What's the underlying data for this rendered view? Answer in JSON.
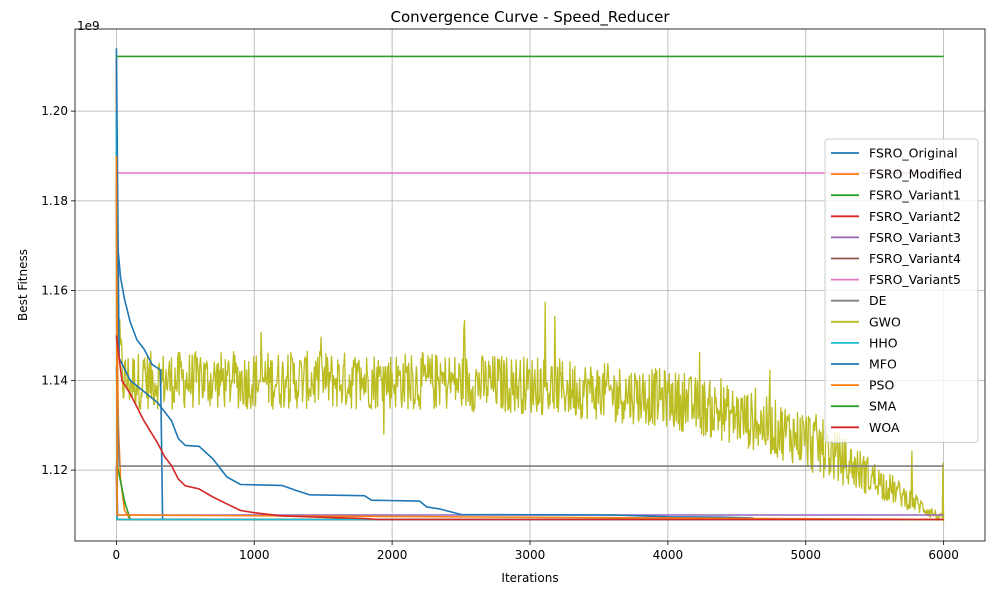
{
  "chart_data": {
    "type": "line",
    "title": "Convergence Curve - Speed_Reducer",
    "xlabel": "Iterations",
    "ylabel": "Best Fitness",
    "offset_label": "1e9",
    "xlim": [
      -300,
      6300
    ],
    "ylim": [
      1.1042,
      1.2183
    ],
    "x_ticks": [
      0,
      1000,
      2000,
      3000,
      4000,
      5000,
      6000
    ],
    "y_ticks": [
      1.12,
      1.14,
      1.16,
      1.18,
      1.2
    ],
    "x_tick_labels": [
      "0",
      "1000",
      "2000",
      "3000",
      "4000",
      "5000",
      "6000"
    ],
    "y_tick_labels": [
      "1.12",
      "1.14",
      "1.16",
      "1.18",
      "1.20"
    ],
    "grid": true,
    "legend_position": "center-right",
    "series": [
      {
        "name": "FSRO_Original",
        "color": "#1f77b4",
        "points": [
          [
            0,
            1.191
          ],
          [
            10,
            1.17
          ],
          [
            30,
            1.163
          ],
          [
            60,
            1.158
          ],
          [
            100,
            1.153
          ],
          [
            150,
            1.149
          ],
          [
            200,
            1.147
          ],
          [
            260,
            1.1435
          ],
          [
            320,
            1.1423
          ],
          [
            335,
            1.109
          ],
          [
            6000,
            1.109
          ]
        ]
      },
      {
        "name": "FSRO_Modified",
        "color": "#ff7f0e",
        "points": [
          [
            0,
            1.186
          ],
          [
            5,
            1.15
          ],
          [
            15,
            1.13
          ],
          [
            30,
            1.118
          ],
          [
            60,
            1.111
          ],
          [
            100,
            1.109
          ],
          [
            6000,
            1.109
          ]
        ]
      },
      {
        "name": "FSRO_Variant1",
        "color": "#2ca02c",
        "points": [
          [
            0,
            1.122
          ],
          [
            20,
            1.119
          ],
          [
            40,
            1.116
          ],
          [
            60,
            1.113
          ],
          [
            80,
            1.111
          ],
          [
            100,
            1.109
          ],
          [
            6000,
            1.109
          ]
        ]
      },
      {
        "name": "FSRO_Variant2",
        "color": "#d62728",
        "points": [
          [
            0,
            1.121
          ],
          [
            4,
            1.109
          ],
          [
            6000,
            1.109
          ]
        ]
      },
      {
        "name": "FSRO_Variant3",
        "color": "#9467bd",
        "points": [
          [
            0,
            1.121
          ],
          [
            10,
            1.11
          ],
          [
            6000,
            1.11
          ]
        ]
      },
      {
        "name": "FSRO_Variant4",
        "color": "#8c564b",
        "points": [
          [
            0,
            1.212
          ],
          [
            6,
            1.109
          ],
          [
            6000,
            1.109
          ]
        ]
      },
      {
        "name": "FSRO_Variant5",
        "color": "#e377c2",
        "points": [
          [
            0,
            1.1862
          ],
          [
            6000,
            1.1862
          ]
        ]
      },
      {
        "name": "DE",
        "color": "#7f7f7f",
        "points": [
          [
            0,
            1.143
          ],
          [
            20,
            1.1209
          ],
          [
            6000,
            1.1209
          ]
        ]
      },
      {
        "name": "GWO",
        "color": "#bcbd22",
        "noisy": true,
        "points": [
          [
            0,
            1.211
          ],
          [
            15,
            1.15
          ],
          [
            50,
            1.14
          ],
          [
            1000,
            1.14
          ],
          [
            2000,
            1.14
          ],
          [
            3000,
            1.139
          ],
          [
            4000,
            1.136
          ],
          [
            4500,
            1.132
          ],
          [
            5000,
            1.127
          ],
          [
            5500,
            1.118
          ],
          [
            6000,
            1.109
          ]
        ]
      },
      {
        "name": "HHO",
        "color": "#17becf",
        "points": [
          [
            0,
            1.2
          ],
          [
            3,
            1.109
          ],
          [
            6000,
            1.109
          ]
        ]
      },
      {
        "name": "MFO",
        "color": "#1f77b4",
        "points": [
          [
            0,
            1.214
          ],
          [
            20,
            1.145
          ],
          [
            100,
            1.14
          ],
          [
            300,
            1.135
          ],
          [
            400,
            1.131
          ],
          [
            450,
            1.127
          ],
          [
            500,
            1.1255
          ],
          [
            600,
            1.1253
          ],
          [
            700,
            1.1225
          ],
          [
            800,
            1.1185
          ],
          [
            900,
            1.1168
          ],
          [
            1200,
            1.1166
          ],
          [
            1300,
            1.1155
          ],
          [
            1400,
            1.1145
          ],
          [
            1800,
            1.1143
          ],
          [
            1850,
            1.1133
          ],
          [
            2200,
            1.1131
          ],
          [
            2250,
            1.1118
          ],
          [
            2350,
            1.1113
          ],
          [
            2500,
            1.1101
          ],
          [
            3600,
            1.11
          ],
          [
            4000,
            1.1096
          ],
          [
            4400,
            1.1095
          ],
          [
            4620,
            1.1093
          ]
        ]
      },
      {
        "name": "PSO",
        "color": "#ff7f0e",
        "points": [
          [
            0,
            1.19
          ],
          [
            5,
            1.11
          ],
          [
            6000,
            1.109
          ]
        ]
      },
      {
        "name": "SMA",
        "color": "#2ca02c",
        "points": [
          [
            0,
            1.2122
          ],
          [
            6000,
            1.2122
          ]
        ]
      },
      {
        "name": "WOA",
        "color": "#d62728",
        "points": [
          [
            0,
            1.15
          ],
          [
            40,
            1.14
          ],
          [
            100,
            1.137
          ],
          [
            200,
            1.131
          ],
          [
            300,
            1.126
          ],
          [
            350,
            1.123
          ],
          [
            400,
            1.121
          ],
          [
            450,
            1.118
          ],
          [
            500,
            1.1165
          ],
          [
            600,
            1.1158
          ],
          [
            700,
            1.114
          ],
          [
            800,
            1.1125
          ],
          [
            900,
            1.111
          ],
          [
            1000,
            1.1105
          ],
          [
            1200,
            1.1098
          ],
          [
            1800,
            1.1092
          ],
          [
            1900,
            1.109
          ],
          [
            6000,
            1.109
          ]
        ]
      }
    ]
  }
}
